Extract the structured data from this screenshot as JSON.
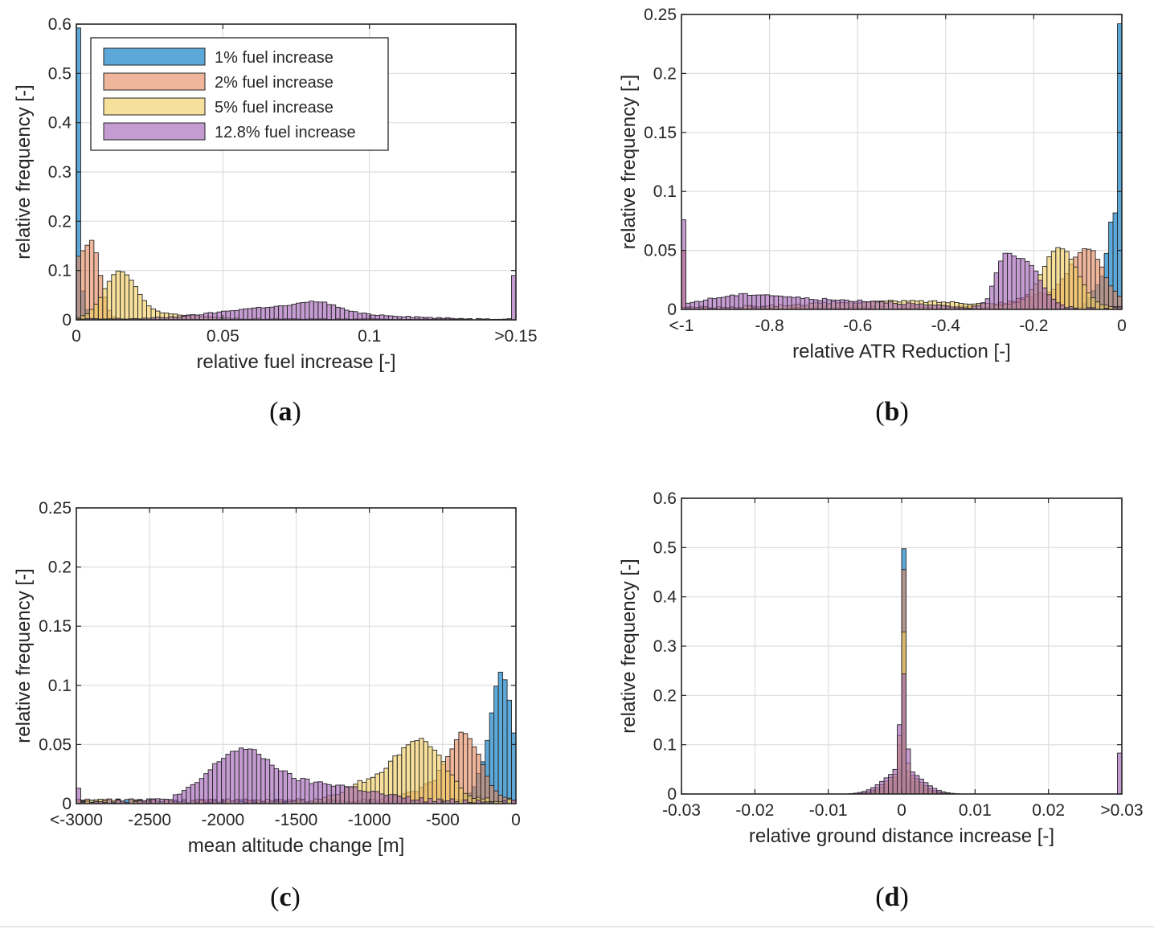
{
  "colors": {
    "s1": "#4a9fd4",
    "s2": "#e5895f",
    "s5": "#f0cd5e",
    "s12": "#a060b4",
    "edge": "#262626"
  },
  "chart_data": [
    {
      "panel": "a",
      "type": "bar",
      "caption": "a",
      "xlabel": "relative fuel increase [-]",
      "ylabel": "relative frequency [-]",
      "xlim": [
        0,
        0.15
      ],
      "ylim": [
        0,
        0.6
      ],
      "bins": 100,
      "xticks": [
        {
          "v": 0,
          "label": "0"
        },
        {
          "v": 0.05,
          "label": "0.05"
        },
        {
          "v": 0.1,
          "label": "0.1"
        },
        {
          "v": 0.15,
          "label": ">0.15"
        }
      ],
      "yticks": [
        {
          "v": 0,
          "label": "0"
        },
        {
          "v": 0.1,
          "label": "0.1"
        },
        {
          "v": 0.2,
          "label": "0.2"
        },
        {
          "v": 0.3,
          "label": "0.3"
        },
        {
          "v": 0.4,
          "label": "0.4"
        },
        {
          "v": 0.5,
          "label": "0.5"
        },
        {
          "v": 0.6,
          "label": "0.6"
        }
      ],
      "legend": {
        "position": "top-left"
      },
      "series": [
        {
          "name": "1% fuel increase",
          "color_key": "s1",
          "peaks": [
            [
              0.0007,
              0.565,
              0.0003
            ],
            [
              0.002,
              0.06,
              0.0012
            ]
          ],
          "noise": 0.0
        },
        {
          "name": "2% fuel increase",
          "color_key": "s2",
          "peaks": [
            [
              0.005,
              0.16,
              0.003
            ],
            [
              0.0008,
              0.07,
              0.0012
            ]
          ],
          "noise": 0.002
        },
        {
          "name": "5% fuel increase",
          "color_key": "s5",
          "peaks": [
            [
              0.015,
              0.095,
              0.0055
            ],
            [
              0.032,
              0.01,
              0.01
            ]
          ],
          "noise": 0.003
        },
        {
          "name": "12.8% fuel increase",
          "color_key": "s12",
          "peaks": [
            [
              0.07,
              0.025,
              0.02
            ],
            [
              0.083,
              0.015,
              0.006
            ],
            [
              0.112,
              0.003,
              0.01
            ]
          ],
          "noise": 0.003,
          "edge_right": 0.09
        }
      ]
    },
    {
      "panel": "b",
      "type": "bar",
      "caption": "b",
      "xlabel": "relative ATR Reduction [-]",
      "ylabel": "relative frequency [-]",
      "xlim": [
        -1,
        0
      ],
      "ylim": [
        0,
        0.25
      ],
      "bins": 100,
      "xticks": [
        {
          "v": -1,
          "label": "<-1"
        },
        {
          "v": -0.8,
          "label": "-0.8"
        },
        {
          "v": -0.6,
          "label": "-0.6"
        },
        {
          "v": -0.4,
          "label": "-0.4"
        },
        {
          "v": -0.2,
          "label": "-0.2"
        },
        {
          "v": 0,
          "label": "0"
        }
      ],
      "yticks": [
        {
          "v": 0,
          "label": "0"
        },
        {
          "v": 0.05,
          "label": "0.05"
        },
        {
          "v": 0.1,
          "label": "0.1"
        },
        {
          "v": 0.15,
          "label": "0.15"
        },
        {
          "v": 0.2,
          "label": "0.2"
        },
        {
          "v": 0.25,
          "label": "0.25"
        }
      ],
      "series": [
        {
          "name": "1% fuel increase",
          "color_key": "s1",
          "peaks": [
            [
              -0.003,
              0.225,
              0.005
            ],
            [
              -0.02,
              0.07,
              0.012
            ],
            [
              -0.05,
              0.02,
              0.02
            ]
          ],
          "noise": 0.001
        },
        {
          "name": "2% fuel increase",
          "color_key": "s2",
          "peaks": [
            [
              -0.08,
              0.05,
              0.04
            ],
            [
              -0.2,
              0.01,
              0.05
            ]
          ],
          "noise": 0.003,
          "edge_left": 0.05
        },
        {
          "name": "5% fuel increase",
          "color_key": "s5",
          "peaks": [
            [
              -0.14,
              0.05,
              0.04
            ],
            [
              -0.5,
              0.006,
              0.2
            ]
          ],
          "noise": 0.002
        },
        {
          "name": "12.8% fuel increase",
          "color_key": "s12",
          "peaks": [
            [
              -0.22,
              0.04,
              0.035
            ],
            [
              -0.27,
              0.03,
              0.02
            ],
            [
              -0.85,
              0.011,
              0.1
            ],
            [
              -0.6,
              0.006,
              0.12
            ]
          ],
          "noise": 0.002,
          "edge_left": 0.076
        }
      ]
    },
    {
      "panel": "c",
      "type": "bar",
      "caption": "c",
      "xlabel": "mean altitude change [m]",
      "ylabel": "relative frequency [-]",
      "xlim": [
        -3000,
        0
      ],
      "ylim": [
        0,
        0.25
      ],
      "bins": 100,
      "xticks": [
        {
          "v": -3000,
          "label": "<-3000"
        },
        {
          "v": -2500,
          "label": "-2500"
        },
        {
          "v": -2000,
          "label": "-2000"
        },
        {
          "v": -1500,
          "label": "-1500"
        },
        {
          "v": -1000,
          "label": "-1000"
        },
        {
          "v": -500,
          "label": "-500"
        },
        {
          "v": 0,
          "label": "0"
        }
      ],
      "yticks": [
        {
          "v": 0,
          "label": "0"
        },
        {
          "v": 0.05,
          "label": "0.05"
        },
        {
          "v": 0.1,
          "label": "0.1"
        },
        {
          "v": 0.15,
          "label": "0.15"
        },
        {
          "v": 0.2,
          "label": "0.2"
        },
        {
          "v": 0.25,
          "label": "0.25"
        }
      ],
      "series": [
        {
          "name": "1% fuel increase",
          "color_key": "s1",
          "peaks": [
            [
              -90,
              0.1,
              70
            ],
            [
              -200,
              0.02,
              80
            ]
          ],
          "noise": 0.004
        },
        {
          "name": "2% fuel increase",
          "color_key": "s2",
          "peaks": [
            [
              -350,
              0.055,
              110
            ],
            [
              -600,
              0.01,
              150
            ]
          ],
          "noise": 0.004
        },
        {
          "name": "5% fuel increase",
          "color_key": "s5",
          "peaks": [
            [
              -650,
              0.05,
              160
            ],
            [
              -1000,
              0.015,
              180
            ]
          ],
          "noise": 0.004
        },
        {
          "name": "12.8% fuel increase",
          "color_key": "s12",
          "peaks": [
            [
              -1880,
              0.042,
              210
            ],
            [
              -1300,
              0.014,
              300
            ]
          ],
          "noise": 0.004,
          "edge_left": 0.013
        }
      ]
    },
    {
      "panel": "d",
      "type": "bar",
      "caption": "d",
      "xlabel": "relative ground distance increase [-]",
      "ylabel": "relative frequency [-]",
      "xlim": [
        -0.03,
        0.03
      ],
      "ylim": [
        0,
        0.6
      ],
      "bins": 100,
      "xticks": [
        {
          "v": -0.03,
          "label": "-0.03"
        },
        {
          "v": -0.02,
          "label": "-0.02"
        },
        {
          "v": -0.01,
          "label": "-0.01"
        },
        {
          "v": 0,
          "label": "0"
        },
        {
          "v": 0.01,
          "label": "0.01"
        },
        {
          "v": 0.02,
          "label": "0.02"
        },
        {
          "v": 0.03,
          "label": ">0.03"
        }
      ],
      "yticks": [
        {
          "v": 0,
          "label": "0"
        },
        {
          "v": 0.1,
          "label": "0.1"
        },
        {
          "v": 0.2,
          "label": "0.2"
        },
        {
          "v": 0.3,
          "label": "0.3"
        },
        {
          "v": 0.4,
          "label": "0.4"
        },
        {
          "v": 0.5,
          "label": "0.5"
        },
        {
          "v": 0.6,
          "label": "0.6"
        }
      ],
      "series": [
        {
          "name": "1% fuel increase",
          "color_key": "s1",
          "peaks": [
            [
              0.0002,
              0.53,
              0.0002
            ],
            [
              0.0002,
              0.03,
              0.002
            ]
          ],
          "noise": 0.0
        },
        {
          "name": "2% fuel increase",
          "color_key": "s2",
          "peaks": [
            [
              0.0002,
              0.45,
              0.00025
            ],
            [
              0.0002,
              0.04,
              0.002
            ]
          ],
          "noise": 0.0
        },
        {
          "name": "5% fuel increase",
          "color_key": "s5",
          "peaks": [
            [
              0.0002,
              0.3,
              0.0003
            ],
            [
              0.0002,
              0.045,
              0.0022
            ]
          ],
          "noise": 0.0
        },
        {
          "name": "12.8% fuel increase",
          "color_key": "s12",
          "peaks": [
            [
              0.0002,
              0.2,
              0.0004
            ],
            [
              0.0002,
              0.05,
              0.0025
            ]
          ],
          "noise": 0.0,
          "edge_right": 0.083
        }
      ]
    }
  ]
}
